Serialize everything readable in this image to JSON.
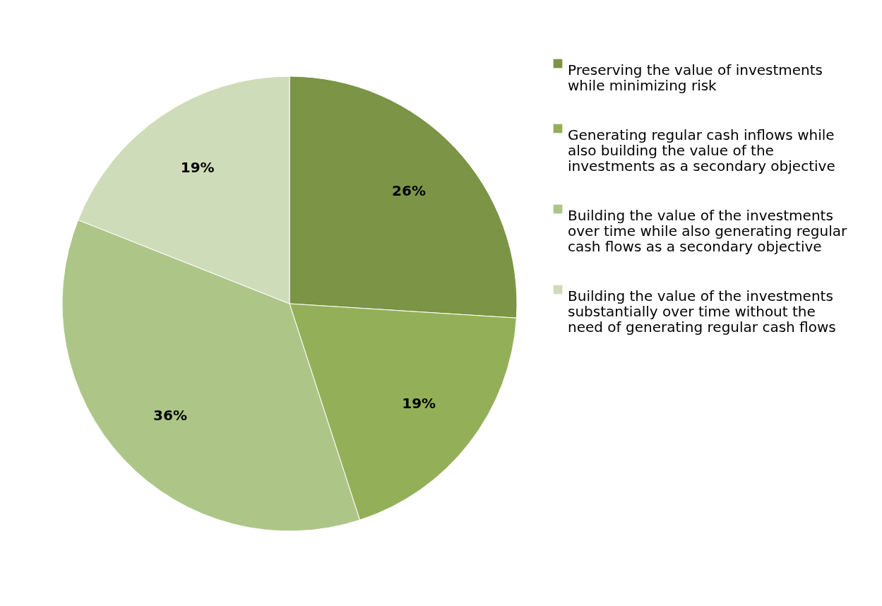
{
  "chart_data": {
    "type": "pie",
    "categories": [
      "Preserving the value of  investments while minimizing risk",
      "Generating regular cash inflows while also building the value of the investments as a secondary objective",
      "Building the value of the investments over time while also generating regular cash flows as a secondary objective",
      "Building the value of the investments substantially over time without the need of generating regular cash flows"
    ],
    "values": [
      26,
      19,
      36,
      19
    ],
    "colors": [
      "#7b9445",
      "#93b058",
      "#adc688",
      "#cfdcb9"
    ],
    "value_labels": [
      "26%",
      "19%",
      "36%",
      "19%"
    ],
    "legend": "right"
  }
}
